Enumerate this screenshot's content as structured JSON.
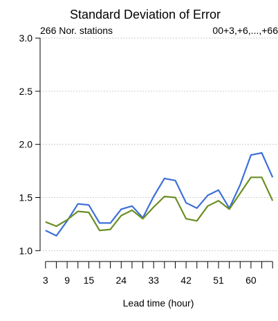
{
  "chart_data": {
    "type": "line",
    "title": "Standard Deviation of Error",
    "subtitle_left": "266 Nor. stations",
    "subtitle_right": "00+3,+6,...,+66",
    "xlabel": "Lead time (hour)",
    "ylabel": "",
    "x": [
      3,
      6,
      9,
      12,
      15,
      18,
      21,
      24,
      27,
      30,
      33,
      36,
      39,
      42,
      45,
      48,
      51,
      54,
      57,
      60,
      63,
      66
    ],
    "xticks": [
      3,
      6,
      9,
      12,
      15,
      18,
      21,
      24,
      27,
      30,
      33,
      36,
      39,
      42,
      45,
      48,
      51,
      54,
      57,
      60,
      63,
      66
    ],
    "xtick_labels": [
      "3",
      "9",
      "15",
      "24",
      "33",
      "42",
      "51",
      "60"
    ],
    "xtick_label_values": [
      3,
      9,
      15,
      24,
      33,
      42,
      51,
      60
    ],
    "yticks": [
      1.0,
      1.5,
      2.0,
      2.5,
      3.0
    ],
    "ytick_labels": [
      "1.0",
      "1.5",
      "2.0",
      "2.5",
      "3.0"
    ],
    "xlim": [
      1.5,
      67.5
    ],
    "ylim": [
      0.95,
      3.02
    ],
    "grid": true,
    "series": [
      {
        "color": "#3d6fd8",
        "values": [
          1.19,
          1.14,
          1.28,
          1.44,
          1.43,
          1.26,
          1.26,
          1.39,
          1.42,
          1.31,
          1.51,
          1.68,
          1.66,
          1.45,
          1.4,
          1.52,
          1.57,
          1.4,
          1.62,
          1.9,
          1.92,
          1.69
        ]
      },
      {
        "color": "#6b8e23",
        "values": [
          1.27,
          1.23,
          1.29,
          1.37,
          1.36,
          1.19,
          1.2,
          1.33,
          1.38,
          1.3,
          1.41,
          1.51,
          1.5,
          1.3,
          1.28,
          1.42,
          1.47,
          1.39,
          1.54,
          1.69,
          1.69,
          1.47
        ]
      }
    ]
  }
}
